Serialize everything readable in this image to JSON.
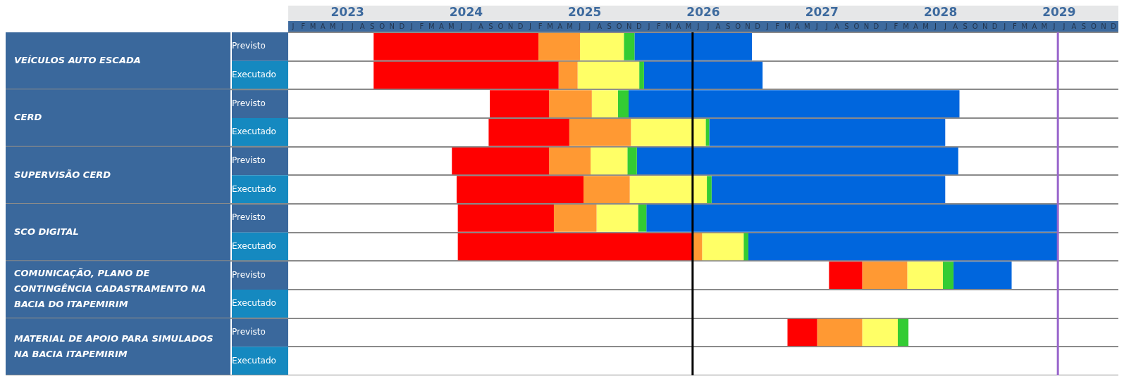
{
  "chart_data": {
    "type": "bar",
    "orientation": "horizontal",
    "grid": "y",
    "legend": false,
    "categories": [
      "Previsto",
      "Executado",
      "Previsto",
      "Executado",
      "Previsto",
      "Executado",
      "Previsto",
      "Executado",
      "Previsto",
      "Executado",
      "Previsto",
      "Executado"
    ],
    "annotations": [
      "VEÍCULOS AUTO ESCADA",
      "CERD",
      "SUPERVISÃO CERD",
      "SCO DIGITAL",
      "COMUNICAÇÃO, PLANO DE CONTINGÊNCIA CADASTRAMENTO NA BACIA DO ITAPEMIRIM",
      "MATERIAL DE APOIO PARA SIMULADOS NA BACIA ITAPEMIRIM",
      "J",
      "F",
      "M",
      "A",
      "M",
      "J",
      "J",
      "A",
      "S",
      "O",
      "N",
      "D",
      "J",
      "F",
      "M",
      "A",
      "M",
      "J",
      "J",
      "A",
      "S",
      "O",
      "N",
      "D",
      "J",
      "F",
      "M",
      "A",
      "M",
      "J",
      "J",
      "A",
      "S",
      "O",
      "N",
      "D",
      "J",
      "F",
      "M",
      "A",
      "M",
      "J",
      "J",
      "A",
      "S",
      "O",
      "N",
      "D",
      "J",
      "F",
      "M",
      "A",
      "M",
      "J",
      "J",
      "A",
      "S",
      "O",
      "N",
      "D",
      "J",
      "F",
      "M",
      "A",
      "M",
      "J",
      "J",
      "A",
      "S",
      "O",
      "N",
      "D",
      "J",
      "F",
      "M",
      "A",
      "M",
      "J",
      "J",
      "A",
      "S",
      "O",
      "N",
      "D"
    ],
    "series": [
      {
        "color": "#ff0000",
        "base": [
          2023.72,
          2023.72,
          2024.7,
          2024.69,
          2024.38,
          2024.42,
          2024.43,
          2024.43,
          2027.56,
          null,
          2027.21,
          null
        ],
        "values": [
          1.39,
          1.56,
          0.5,
          0.68,
          0.82,
          1.07,
          0.81,
          1.98,
          0.28,
          null,
          0.25,
          null
        ]
      },
      {
        "color": "#ff9933",
        "base": [
          2025.11,
          2025.28,
          2025.2,
          2025.37,
          2025.2,
          2025.49,
          2025.24,
          2026.41,
          2027.84,
          null,
          2027.46,
          null
        ],
        "values": [
          0.35,
          0.16,
          0.36,
          0.52,
          0.35,
          0.39,
          0.36,
          0.08,
          0.38,
          null,
          0.38,
          null
        ]
      },
      {
        "color": "#ffff66",
        "base": [
          2025.46,
          2025.44,
          2025.56,
          2025.89,
          2025.55,
          2025.88,
          2025.6,
          2026.49,
          2028.22,
          null,
          2027.84,
          null
        ],
        "values": [
          0.37,
          0.52,
          0.22,
          0.63,
          0.31,
          0.65,
          0.35,
          0.35,
          0.3,
          null,
          0.3,
          null
        ]
      },
      {
        "color": "#33cc33",
        "base": [
          2025.83,
          2025.96,
          2025.78,
          2026.52,
          2025.86,
          2026.53,
          2025.95,
          2026.84,
          2028.52,
          null,
          2028.14,
          null
        ],
        "values": [
          0.09,
          0.04,
          0.09,
          0.03,
          0.08,
          0.04,
          0.07,
          0.04,
          0.09,
          null,
          0.09,
          null
        ]
      },
      {
        "color": "#0066dd",
        "base": [
          2025.92,
          2026.0,
          2025.87,
          2026.55,
          2025.94,
          2026.57,
          2026.02,
          2026.88,
          2028.61,
          null,
          null,
          null
        ],
        "values": [
          0.99,
          1.0,
          2.79,
          1.99,
          2.71,
          1.97,
          3.47,
          2.61,
          0.49,
          null,
          null,
          null
        ]
      }
    ],
    "xlim": [
      2023,
      2030
    ],
    "xticks": [
      {
        "value": 2023.5,
        "label": "2023"
      },
      {
        "value": 2024.5,
        "label": "2024"
      },
      {
        "value": 2025.5,
        "label": "2025"
      },
      {
        "value": 2026.5,
        "label": "2026"
      },
      {
        "value": 2027.5,
        "label": "2027"
      },
      {
        "value": 2028.5,
        "label": "2028"
      },
      {
        "value": 2029.5,
        "label": "2029"
      }
    ],
    "ref_lines": [
      {
        "axis": "x",
        "value": 2026.41,
        "color": "#000000"
      },
      {
        "axis": "x",
        "value": 2029.49,
        "color": "#9966cc"
      }
    ]
  }
}
